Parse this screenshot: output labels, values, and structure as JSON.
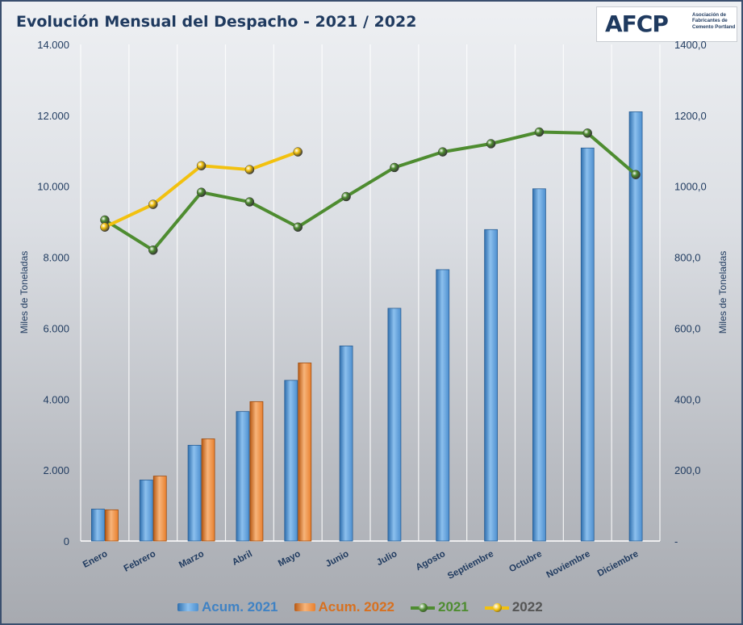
{
  "title": "Evolución Mensual del Despacho - 2021 / 2022",
  "logo": {
    "mark": "AFCP",
    "text": "Asociación de Fabricantes de Cemento Portland"
  },
  "colors": {
    "bar_2021": "#4d8fcf",
    "bar_2022": "#e8802e",
    "line_2021": "#4e8c30",
    "line_2022": "#f2c10f",
    "axis_text": "#1f3a5f"
  },
  "chart_data": {
    "type": "bar",
    "title": "Evolución Mensual del Despacho - 2021 / 2022",
    "categories": [
      "Enero",
      "Febrero",
      "Marzo",
      "Abril",
      "Mayo",
      "Junio",
      "Julio",
      "Agosto",
      "Septiembre",
      "Octubre",
      "Noviembre",
      "Diciembre"
    ],
    "ylabel": "Miles de Toneladas",
    "y2label": "Miles de Toneladas",
    "ylim": [
      0,
      14000
    ],
    "y2lim": [
      0,
      1400
    ],
    "yticks": [
      "0",
      "2.000",
      "4.000",
      "6.000",
      "8.000",
      "10.000",
      "12.000",
      "14.000"
    ],
    "y2ticks": [
      "-",
      "200,0",
      "400,0",
      "600,0",
      "800,0",
      "1000,0",
      "1200,0",
      "1400,0"
    ],
    "grid": "vertical",
    "legend_position": "bottom",
    "bar_series": [
      {
        "name": "Acum. 2021",
        "values": [
          900,
          1720,
          2700,
          3650,
          4530,
          5500,
          6560,
          7650,
          8780,
          9930,
          11080,
          12100
        ]
      },
      {
        "name": "Acum. 2022",
        "values": [
          880,
          1830,
          2880,
          3930,
          5020,
          null,
          null,
          null,
          null,
          null,
          null,
          null
        ]
      }
    ],
    "line_series": [
      {
        "name": "2021",
        "axis": "right",
        "values": [
          905,
          820,
          983,
          956,
          885,
          971,
          1053,
          1097,
          1120,
          1153,
          1150,
          1033
        ]
      },
      {
        "name": "2022",
        "axis": "right",
        "values": [
          885,
          949,
          1058,
          1047,
          1097,
          null,
          null,
          null,
          null,
          null,
          null,
          null
        ]
      }
    ]
  }
}
